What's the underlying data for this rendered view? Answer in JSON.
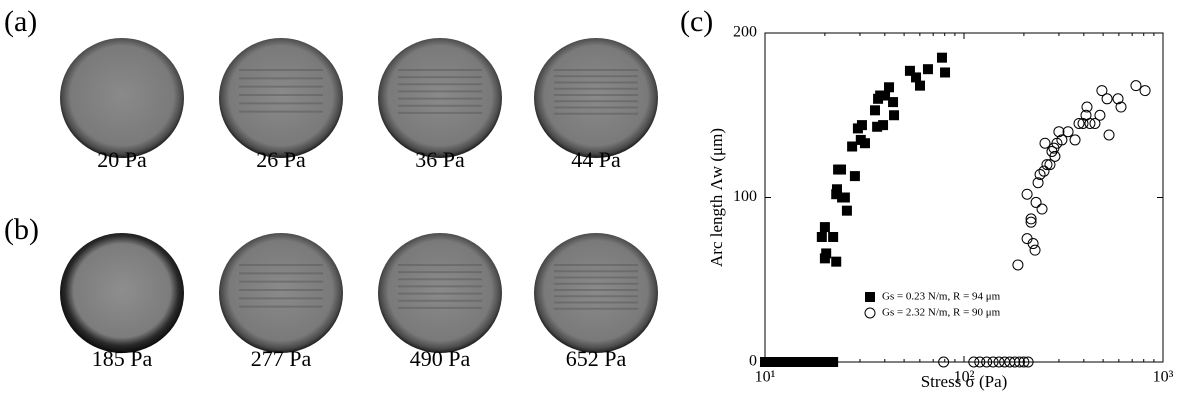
{
  "panels": {
    "a": {
      "label": "(a)",
      "captions": [
        "20 Pa",
        "26 Pa",
        "36 Pa",
        "44 Pa"
      ]
    },
    "b": {
      "label": "(b)",
      "captions": [
        "185 Pa",
        "277 Pa",
        "490 Pa",
        "652 Pa"
      ]
    },
    "c": {
      "label": "(c)"
    }
  },
  "chart_data": {
    "type": "scatter",
    "xlabel": "Stress σ (Pa)",
    "ylabel": "Arc length Λw (μm)",
    "xscale": "log",
    "xlim": [
      10,
      1000
    ],
    "xticks": [
      {
        "value": 10,
        "label": "10¹"
      },
      {
        "value": 100,
        "label": "10²"
      },
      {
        "value": 1000,
        "label": "10³"
      }
    ],
    "ylim": [
      0,
      200
    ],
    "yticks": [
      0,
      100,
      200
    ],
    "legend": "lower center",
    "series": [
      {
        "name": "Gs = 0.23 N/m, R = 94 μm",
        "color": "#000000",
        "marker": "square",
        "filled": true,
        "x": [
          19.3,
          20.0,
          20.0,
          20.3,
          22.0,
          22.8,
          22.8,
          23.0,
          23.3,
          24.1,
          24.4,
          25.2,
          25.8,
          27.4,
          28.3,
          29.3,
          30.7,
          30.3,
          31.8,
          36.6,
          35.7,
          37.0,
          37.9,
          39.2,
          40.1,
          42.0,
          44.0,
          44.5,
          53.5,
          57.4,
          60.1,
          65.9,
          77.5,
          80.3,
          10,
          11,
          12,
          13,
          14,
          15,
          16,
          17,
          18,
          19,
          20,
          21,
          22
        ],
        "values": [
          76,
          82,
          63,
          66,
          76,
          61,
          102,
          105,
          117,
          117,
          100,
          100,
          92,
          131,
          113,
          142,
          144,
          135,
          133,
          143,
          153,
          160,
          162,
          144,
          162,
          167,
          158,
          150,
          177,
          173,
          168,
          178,
          185,
          176,
          0,
          0,
          0,
          0,
          0,
          0,
          0,
          0,
          0,
          0,
          0,
          0,
          0
        ]
      },
      {
        "name": "Gs = 2.32 N/m, R = 90 μm",
        "color": "#000000",
        "marker": "circle",
        "filled": false,
        "x": [
          186.6,
          207.5,
          207.5,
          217.3,
          217.3,
          222.4,
          227.5,
          230.2,
          235.6,
          246.7,
          241.1,
          252.4,
          255.3,
          261.2,
          270.4,
          276.7,
          283.1,
          286.4,
          293.1,
          299.9,
          310.4,
          333.4,
          361.4,
          378.4,
          396.3,
          410.3,
          415.0,
          429.5,
          455.0,
          482.0,
          493.2,
          523.6,
          535.6,
          594.3,
          615.2,
          731.2,
          812.8,
          79,
          112,
          120,
          130,
          140,
          150,
          160,
          170,
          180,
          190,
          200,
          210
        ],
        "values": [
          59,
          75,
          102,
          87,
          85,
          72,
          68,
          97,
          109,
          93,
          114,
          116,
          133,
          120,
          120,
          128,
          130,
          125,
          133,
          140,
          135,
          140,
          135,
          145,
          145,
          150,
          155,
          145,
          145,
          150,
          165,
          160,
          138,
          160,
          155,
          168,
          165,
          0,
          0,
          0,
          0,
          0,
          0,
          0,
          0,
          0,
          0,
          0,
          0
        ]
      }
    ]
  }
}
